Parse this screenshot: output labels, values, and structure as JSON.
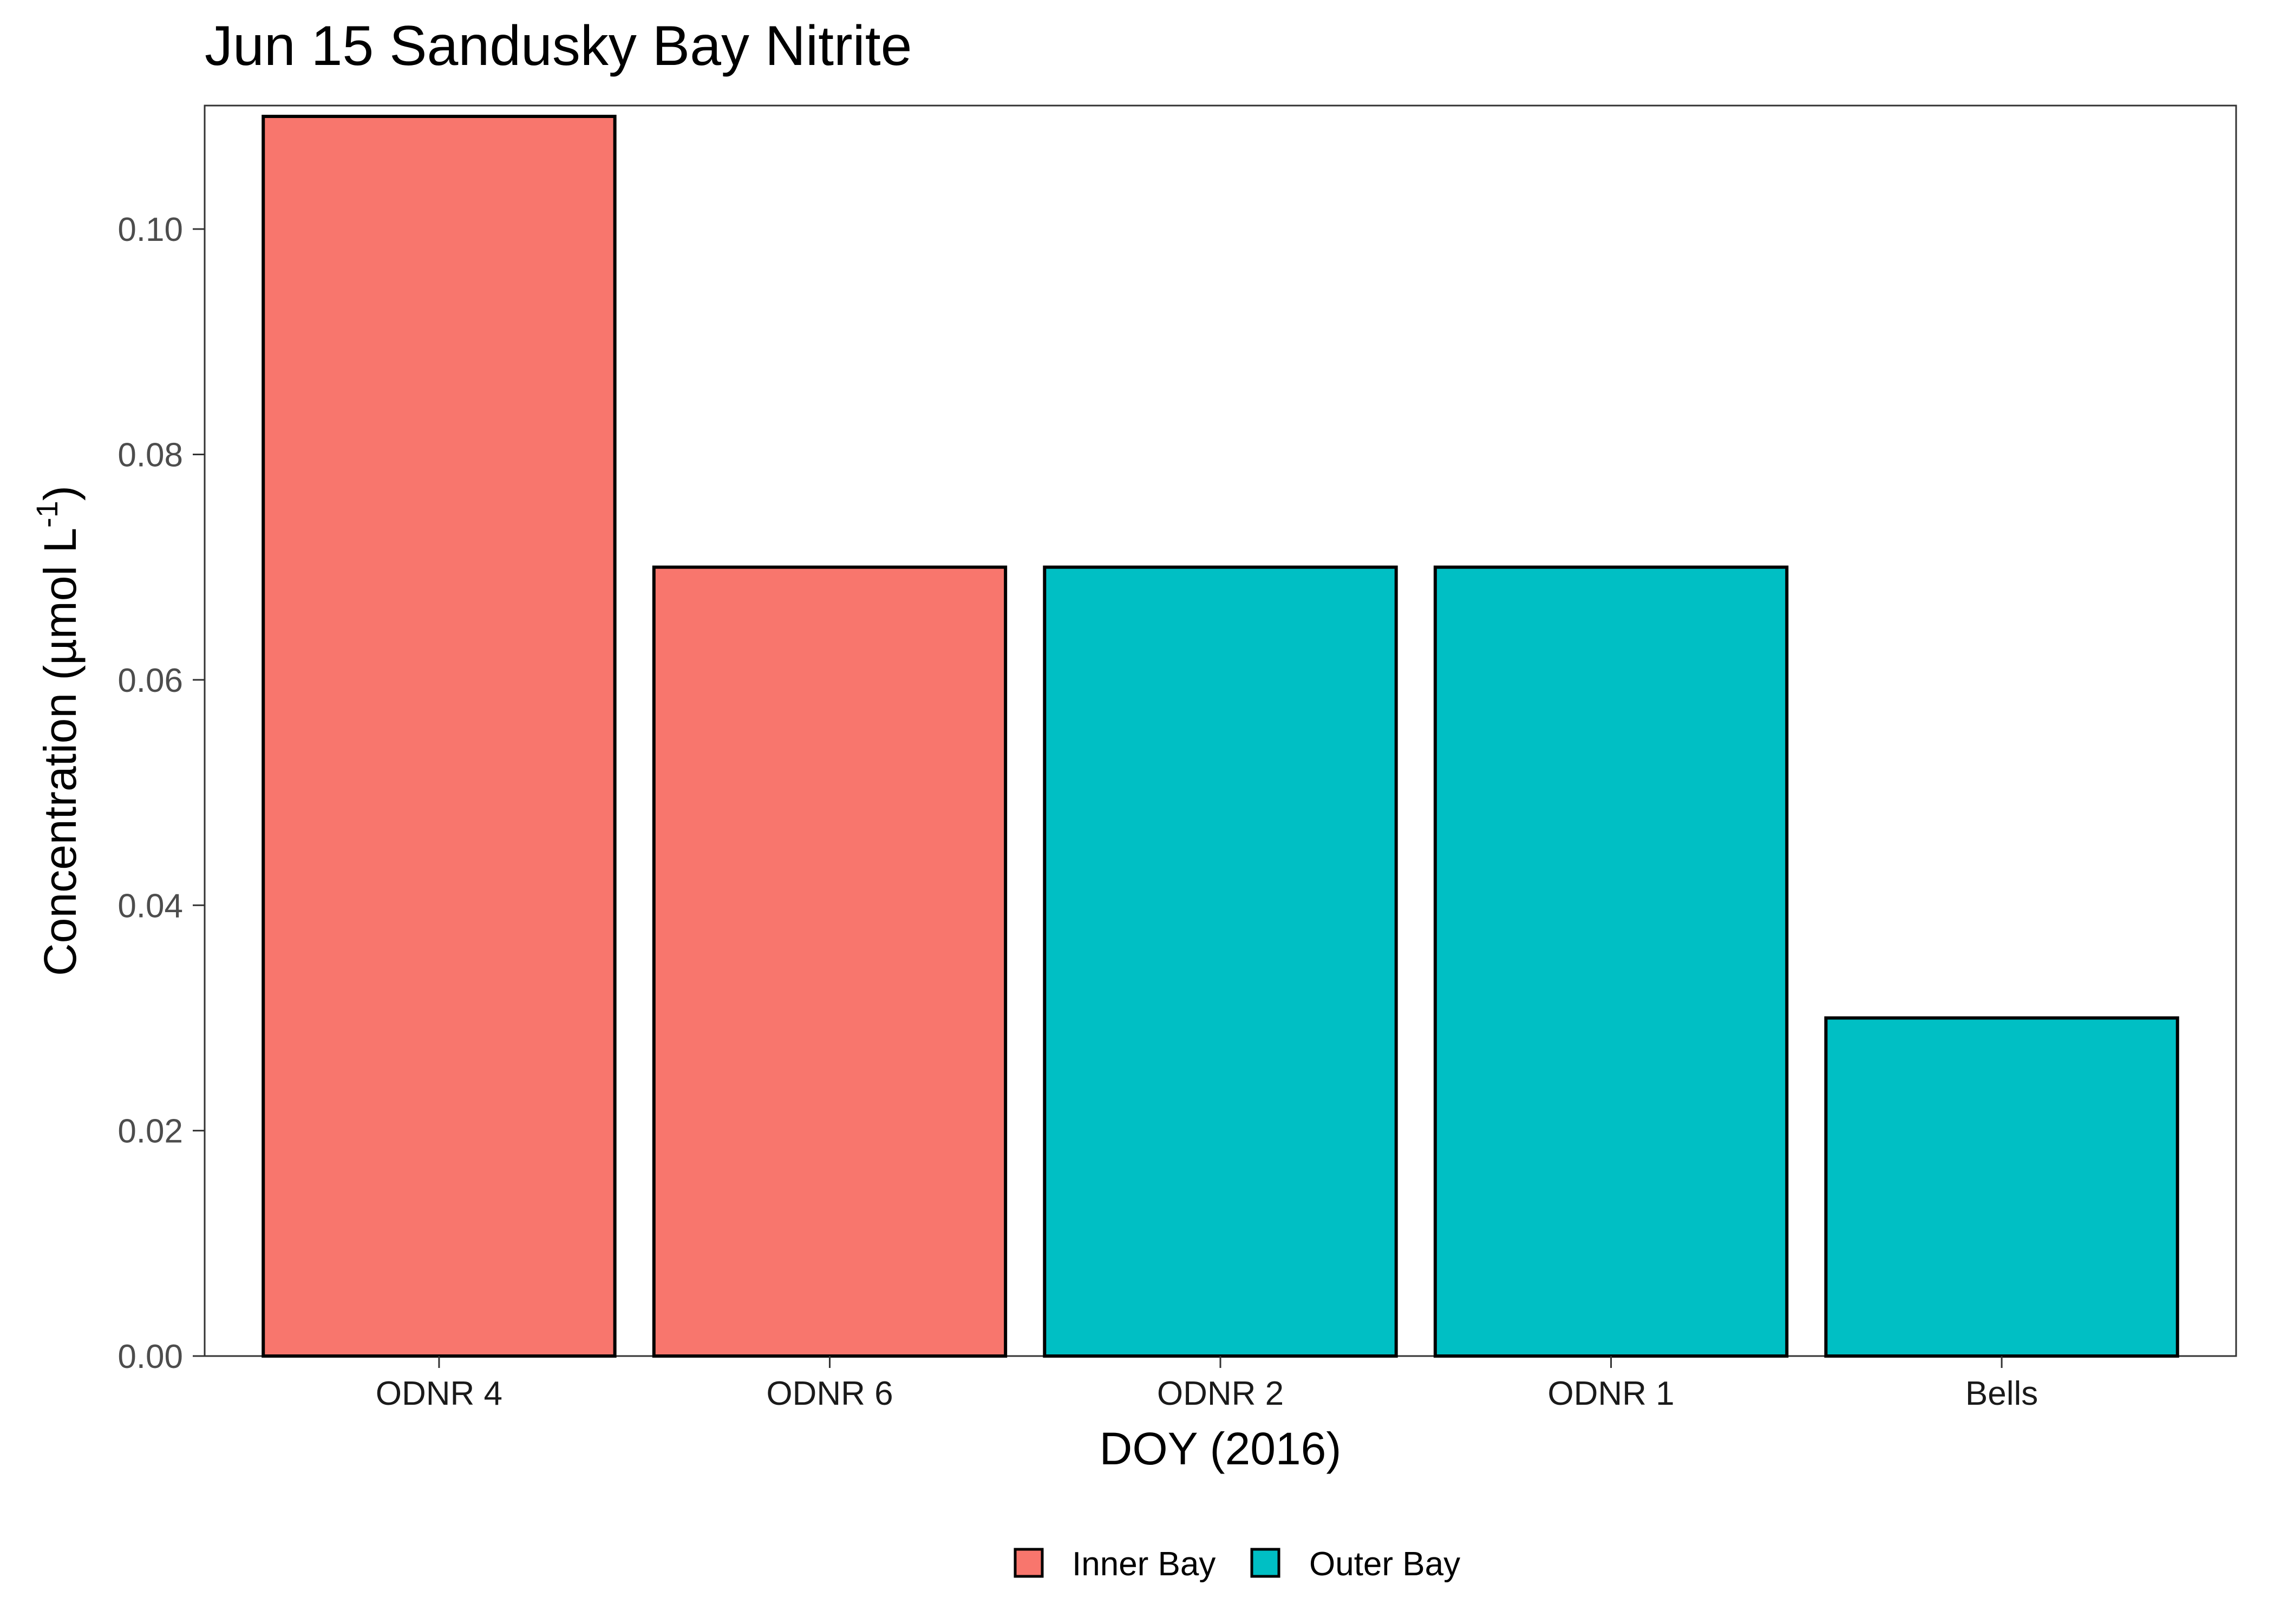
{
  "chart_data": {
    "type": "bar",
    "title": "Jun 15 Sandusky Bay Nitrite",
    "xlabel": "DOY (2016)",
    "ylabel": "Concentration (µmol L",
    "ylabel_superscript": "-1",
    "ylabel_suffix": ")",
    "categories": [
      "ODNR 4",
      "ODNR 6",
      "ODNR 2",
      "ODNR 1",
      "Bells"
    ],
    "values": [
      0.11,
      0.07,
      0.07,
      0.07,
      0.03
    ],
    "groups": [
      "Inner Bay",
      "Inner Bay",
      "Outer Bay",
      "Outer Bay",
      "Outer Bay"
    ],
    "ylim": [
      0,
      0.11
    ],
    "yticks": [
      0.0,
      0.02,
      0.04,
      0.06,
      0.08,
      0.1
    ],
    "ytick_labels": [
      "0.00",
      "0.02",
      "0.04",
      "0.06",
      "0.08",
      "0.10"
    ],
    "grid": false,
    "legend": {
      "position": "bottom",
      "entries": [
        {
          "name": "Inner Bay",
          "color": "#F8766D"
        },
        {
          "name": "Outer Bay",
          "color": "#00BFC4"
        }
      ]
    }
  }
}
